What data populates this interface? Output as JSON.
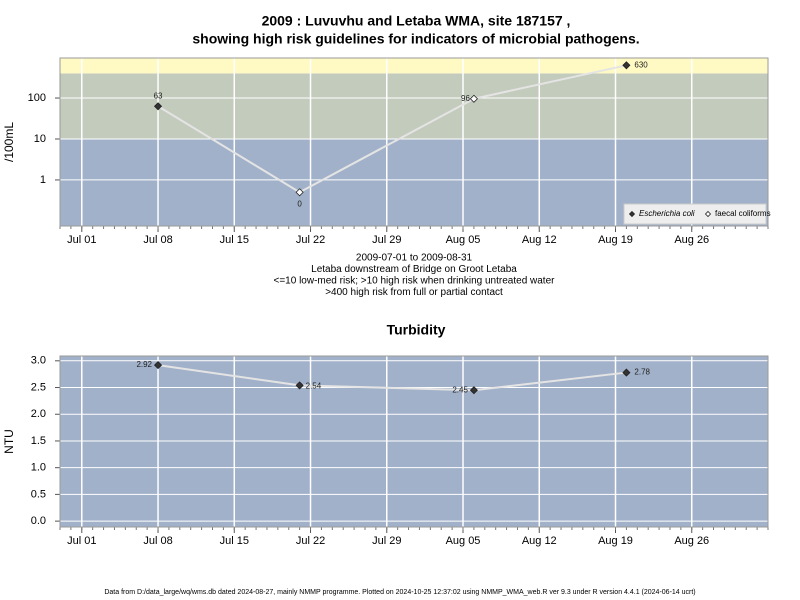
{
  "chart_data": [
    {
      "type": "line",
      "title": [
        "2009 : Luvuvhu and Letaba WMA, site 187157 ,",
        "showing high risk guidelines for indicators of microbial pathogens."
      ],
      "ylabel": "/100mL",
      "log_y": true,
      "grid": true,
      "legend": "bottom-right",
      "line_color": "#e4e4e4",
      "xlim": [
        "2009-06-29",
        "2009-09-02"
      ],
      "xticks": [
        {
          "value": "2009-07-01",
          "label": "Jul 01"
        },
        {
          "value": "2009-07-08",
          "label": "Jul 08"
        },
        {
          "value": "2009-07-15",
          "label": "Jul 15"
        },
        {
          "value": "2009-07-22",
          "label": "Jul 22"
        },
        {
          "value": "2009-07-29",
          "label": "Jul 29"
        },
        {
          "value": "2009-08-05",
          "label": "Aug 05"
        },
        {
          "value": "2009-08-12",
          "label": "Aug 12"
        },
        {
          "value": "2009-08-19",
          "label": "Aug 19"
        },
        {
          "value": "2009-08-26",
          "label": "Aug 26"
        }
      ],
      "ylim": [
        0.075,
        950
      ],
      "yticks": [
        1,
        10,
        100
      ],
      "thresholds": [
        10,
        400
      ],
      "band_colors": [
        "#a1b1c9",
        "#c3cbbc",
        "#fff9c4"
      ],
      "series": [
        {
          "name": "Escherichia coli",
          "color": "#333333",
          "x": [
            "2009-07-08",
            "2009-08-20"
          ],
          "values": [
            63,
            630
          ]
        },
        {
          "name": "faecal coliforms",
          "color": "#ffffff",
          "x": [
            "2009-07-21",
            "2009-08-06"
          ],
          "values": [
            0.5,
            96
          ],
          "value_labels": [
            "0",
            "96"
          ]
        }
      ],
      "notes": [
        "2009-07-01 to 2009-08-31",
        "Letaba downstream of Bridge on Groot Letaba",
        "<=10 low-med risk; >10 high risk when drinking untreated water",
        ">400 high risk from full or partial contact"
      ]
    },
    {
      "type": "line",
      "title": [
        "Turbidity"
      ],
      "ylabel": "NTU",
      "log_y": false,
      "grid": true,
      "line_color": "#e4e4e4",
      "background": "#a1b1c9",
      "xlim": [
        "2009-06-29",
        "2009-09-02"
      ],
      "xticks": [
        {
          "value": "2009-07-01",
          "label": "Jul 01"
        },
        {
          "value": "2009-07-08",
          "label": "Jul 08"
        },
        {
          "value": "2009-07-15",
          "label": "Jul 15"
        },
        {
          "value": "2009-07-22",
          "label": "Jul 22"
        },
        {
          "value": "2009-07-29",
          "label": "Jul 29"
        },
        {
          "value": "2009-08-05",
          "label": "Aug 05"
        },
        {
          "value": "2009-08-12",
          "label": "Aug 12"
        },
        {
          "value": "2009-08-19",
          "label": "Aug 19"
        },
        {
          "value": "2009-08-26",
          "label": "Aug 26"
        }
      ],
      "ylim": [
        -0.11,
        3.09
      ],
      "yticks": [
        {
          "value": 0,
          "label": "0.0"
        },
        0.5,
        {
          "value": 1,
          "label": "1.0"
        },
        1.5,
        {
          "value": 2,
          "label": "2.0"
        },
        2.5,
        {
          "value": 3,
          "label": "3.0"
        }
      ],
      "series": [
        {
          "name": "Turbidity",
          "color": "#333333",
          "x": [
            "2009-07-08",
            "2009-07-21",
            "2009-08-06",
            "2009-08-20"
          ],
          "values": [
            2.92,
            2.54,
            2.45,
            2.78
          ]
        }
      ]
    }
  ],
  "footer": "Data from D:/data_large/wq/wms.db dated 2024-08-27, mainly NMMP programme. Plotted on 2024-10-25 12:37:02 using NMMP_WMA_web.R ver 9.3 under R version 4.4.1 (2024-06-14 ucrt)"
}
